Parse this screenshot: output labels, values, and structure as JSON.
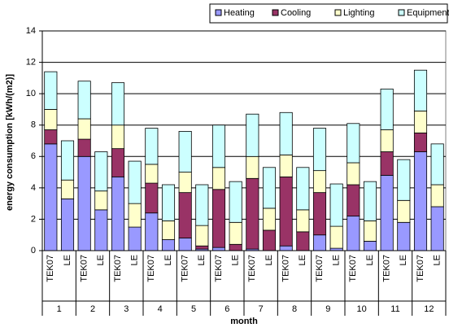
{
  "chart_data": {
    "type": "stacked-bar",
    "y_label": "energy consumption [kWh/(m2)]",
    "x_label": "month",
    "categories": [
      "TEK07",
      "LE",
      "TEK07",
      "LE",
      "TEK07",
      "LE",
      "TEK07",
      "LE",
      "TEK07",
      "LE",
      "TEK07",
      "LE",
      "TEK07",
      "LE",
      "TEK07",
      "LE",
      "TEK07",
      "LE",
      "TEK07",
      "LE",
      "TEK07",
      "LE",
      "TEK07",
      "LE"
    ],
    "groups": [
      "1",
      "2",
      "3",
      "4",
      "5",
      "6",
      "7",
      "8",
      "9",
      "10",
      "11",
      "12"
    ],
    "series": [
      {
        "name": "Heating",
        "color": "#9999ff",
        "values": [
          6.8,
          3.3,
          6.0,
          2.6,
          4.7,
          1.5,
          2.4,
          0.7,
          0.8,
          0.1,
          0.2,
          0,
          0.1,
          0,
          0.3,
          0,
          1.0,
          0.15,
          2.2,
          0.6,
          4.8,
          1.8,
          6.3,
          2.8
        ]
      },
      {
        "name": "Cooling",
        "color": "#993366",
        "values": [
          0.9,
          0,
          1.1,
          0,
          1.8,
          0,
          1.9,
          0,
          2.9,
          0.2,
          3.7,
          0.4,
          4.5,
          1.3,
          4.4,
          1.2,
          2.7,
          0,
          2.0,
          0,
          1.5,
          0,
          1.2,
          0
        ]
      },
      {
        "name": "Lighting",
        "color": "#ffffcc",
        "values": [
          1.3,
          1.2,
          1.3,
          1.2,
          1.5,
          1.5,
          1.2,
          1.2,
          1.3,
          1.3,
          1.4,
          1.4,
          1.4,
          1.4,
          1.4,
          1.4,
          1.4,
          1.4,
          1.4,
          1.3,
          1.4,
          1.4,
          1.4,
          1.4
        ]
      },
      {
        "name": "Equipment",
        "color": "#ccffff",
        "values": [
          2.4,
          2.5,
          2.4,
          2.5,
          2.7,
          2.7,
          2.3,
          2.3,
          2.6,
          2.6,
          2.7,
          2.6,
          2.7,
          2.6,
          2.7,
          2.7,
          2.7,
          2.7,
          2.5,
          2.5,
          2.6,
          2.6,
          2.6,
          2.6
        ]
      }
    ],
    "ylim": [
      0,
      14
    ],
    "yticks": [
      0,
      2,
      4,
      6,
      8,
      10,
      12,
      14
    ],
    "grid": true,
    "legend": "top"
  }
}
